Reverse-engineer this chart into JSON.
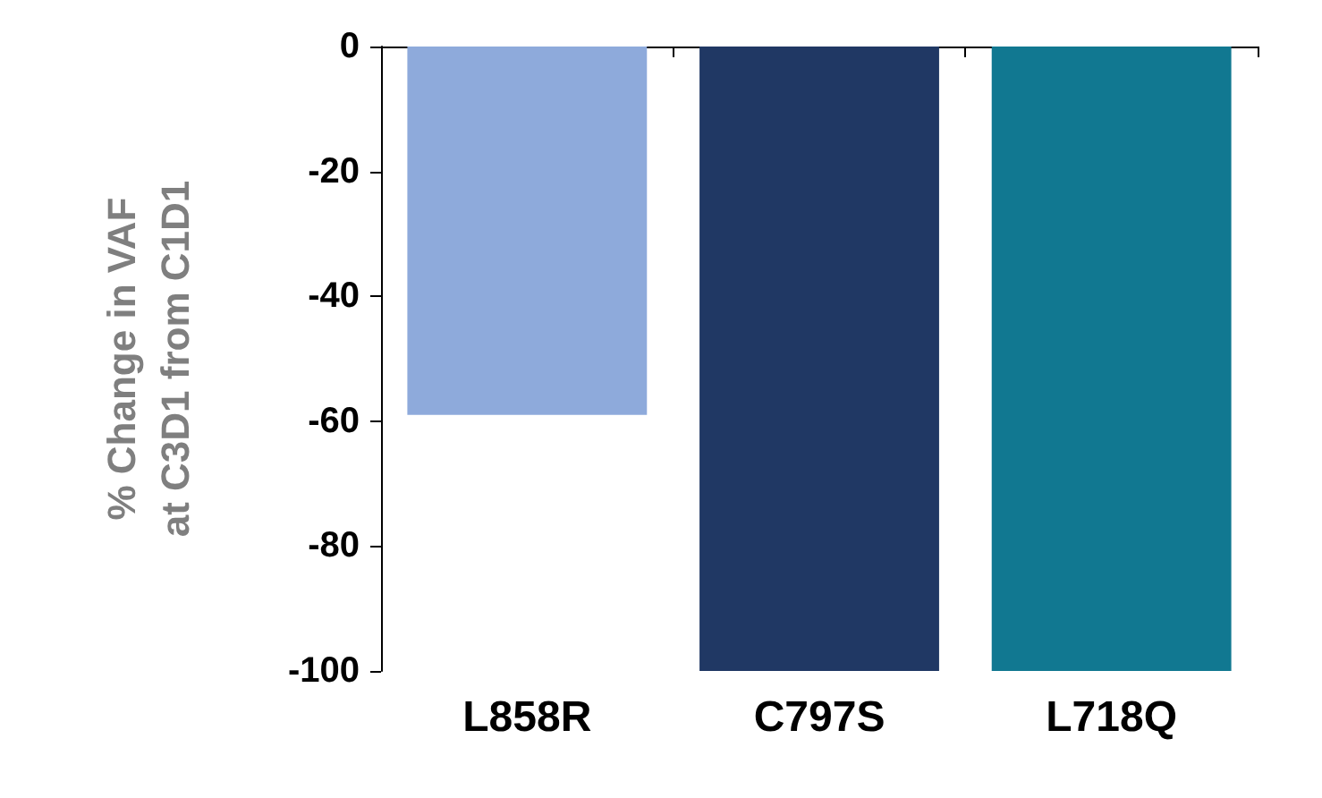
{
  "chart_data": {
    "type": "bar",
    "ylabel": "% Change in VAF\nat C3D1 from C1D1",
    "categories": [
      "L858R",
      "C797S",
      "L718Q"
    ],
    "values": [
      -59,
      -100,
      -100
    ],
    "colors": [
      "#8eaadb",
      "#203864",
      "#117891"
    ],
    "ylim": [
      -100,
      0
    ],
    "yticks": [
      -100,
      -80,
      -60,
      -40,
      -20,
      0
    ],
    "grid": false
  }
}
